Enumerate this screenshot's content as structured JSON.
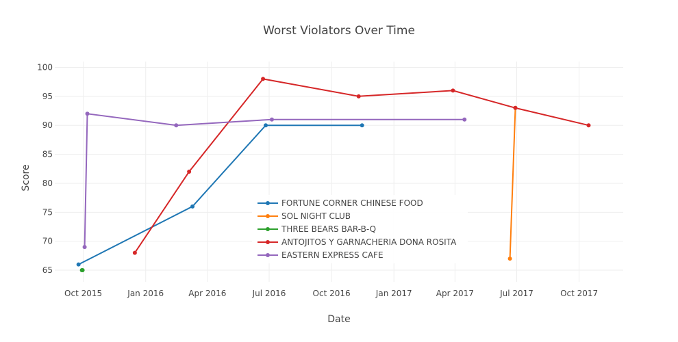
{
  "chart_data": {
    "type": "line",
    "title": "Worst Violators Over Time",
    "xlabel": "Date",
    "ylabel": "Score",
    "ylim": [
      63,
      101
    ],
    "xlim": [
      "2015-08-20",
      "2017-12-05"
    ],
    "y_ticks": [
      65,
      70,
      75,
      80,
      85,
      90,
      95,
      100
    ],
    "x_ticks": [
      {
        "date": "2015-10-01",
        "label": "Oct 2015"
      },
      {
        "date": "2016-01-01",
        "label": "Jan 2016"
      },
      {
        "date": "2016-04-01",
        "label": "Apr 2016"
      },
      {
        "date": "2016-07-01",
        "label": "Jul 2016"
      },
      {
        "date": "2016-10-01",
        "label": "Oct 2016"
      },
      {
        "date": "2017-01-01",
        "label": "Jan 2017"
      },
      {
        "date": "2017-04-01",
        "label": "Apr 2017"
      },
      {
        "date": "2017-07-01",
        "label": "Jul 2017"
      },
      {
        "date": "2017-10-01",
        "label": "Oct 2017"
      }
    ],
    "grid": true,
    "legend_position": "center",
    "series": [
      {
        "name": "FORTUNE CORNER CHINESE FOOD",
        "color": "#1f77b4",
        "points": [
          [
            "2015-09-24",
            66
          ],
          [
            "2016-03-10",
            76
          ],
          [
            "2016-06-26",
            90
          ],
          [
            "2016-11-15",
            90
          ]
        ]
      },
      {
        "name": "SOL NIGHT CLUB",
        "color": "#ff7f0e",
        "points": [
          [
            "2017-06-21",
            67
          ],
          [
            "2017-06-29",
            93
          ]
        ]
      },
      {
        "name": "THREE BEARS BAR-B-Q",
        "color": "#2ca02c",
        "points": [
          [
            "2015-09-29",
            65
          ],
          [
            "2015-09-30",
            65
          ]
        ]
      },
      {
        "name": "ANTOJITOS Y GARNACHERIA DONA ROSITA",
        "color": "#d62728",
        "points": [
          [
            "2015-12-16",
            68
          ],
          [
            "2016-03-05",
            82
          ],
          [
            "2016-06-22",
            98
          ],
          [
            "2016-11-10",
            95
          ],
          [
            "2017-03-29",
            96
          ],
          [
            "2017-06-29",
            93
          ],
          [
            "2017-10-15",
            90
          ]
        ]
      },
      {
        "name": "EASTERN EXPRESS CAFE",
        "color": "#9467bd",
        "points": [
          [
            "2015-10-03",
            69
          ],
          [
            "2015-10-07",
            92
          ],
          [
            "2016-02-15",
            90
          ],
          [
            "2016-07-05",
            91
          ],
          [
            "2017-04-15",
            91
          ]
        ]
      }
    ]
  }
}
